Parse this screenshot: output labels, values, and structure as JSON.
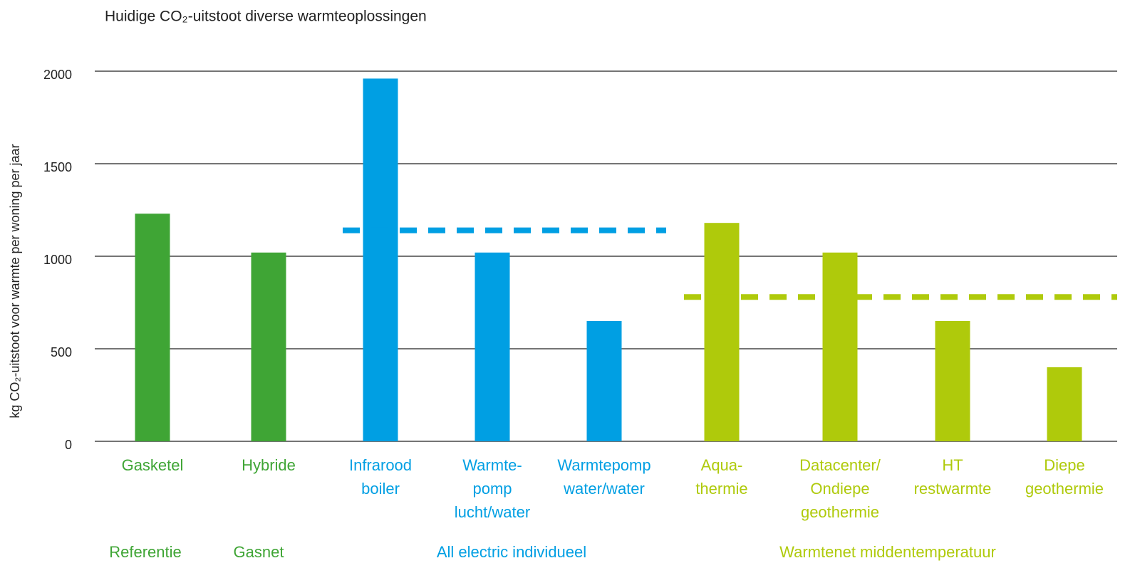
{
  "chart_data": {
    "type": "bar",
    "title": "Huidige CO₂-uitstoot diverse warmteoplossingen",
    "ylabel": "kg CO₂-uitstoot voor warmte per woning per jaar",
    "categories": [
      [
        "Gasketel"
      ],
      [
        "Hybride"
      ],
      [
        "Infrarood",
        "boiler"
      ],
      [
        "Warmte-",
        "pomp",
        "lucht/water"
      ],
      [
        "Warmtepomp",
        "water/water"
      ],
      [
        "Aqua-",
        "thermie"
      ],
      [
        "Datacenter/",
        "Ondiepe",
        "geothermie"
      ],
      [
        "HT",
        "restwarmte"
      ],
      [
        "Diepe",
        "geothermie"
      ]
    ],
    "values": [
      1230,
      1020,
      1960,
      1020,
      650,
      1180,
      1020,
      650,
      400
    ],
    "colors": [
      "#3fa535",
      "#3fa535",
      "#009fe3",
      "#009fe3",
      "#009fe3",
      "#afca0b",
      "#afca0b",
      "#afca0b",
      "#afca0b"
    ],
    "groups": [
      {
        "label": "Referentie",
        "color": "#3fa535"
      },
      {
        "label": "Gasnet",
        "color": "#3fa535"
      },
      {
        "label": "All electric individueel",
        "color": "#009fe3"
      },
      {
        "label": "Warmtenet middentemperatuur",
        "color": "#afca0b"
      }
    ],
    "reference_lines": [
      {
        "value": 1140,
        "color": "#009fe3"
      },
      {
        "value": 780,
        "color": "#afca0b"
      }
    ],
    "ylim": [
      0,
      2000
    ],
    "yticks": [
      0,
      500,
      1000,
      1500,
      2000
    ],
    "grid": true
  }
}
